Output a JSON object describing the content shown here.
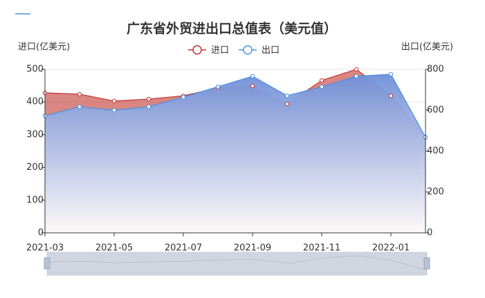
{
  "chart_data": {
    "type": "line",
    "title": "广东省外贸进出口总值表（美元值）",
    "y_label": "进口(亿美元)",
    "y2_label": "出口(亿美元)",
    "categories": [
      "2021-03",
      null,
      "2021-05",
      null,
      "2021-07",
      null,
      "2021-09",
      null,
      "2021-11",
      null,
      "2022-01",
      null
    ],
    "series": [
      {
        "name": "进口",
        "color": "#c23531",
        "values": [
          428,
          424,
          403,
          409,
          419,
          443,
          449,
          394,
          466,
          500,
          419,
          292
        ]
      },
      {
        "name": "出口",
        "color": "#4a90e2",
        "axis": "y2",
        "values": [
          573,
          617,
          600,
          617,
          664,
          715,
          766,
          671,
          715,
          766,
          776,
          468
        ]
      }
    ],
    "ylim": [
      0,
      500
    ],
    "yticks": [
      0,
      100,
      200,
      300,
      400,
      500
    ],
    "y2lim": [
      0,
      800
    ],
    "y2ticks": [
      0,
      200,
      400,
      600,
      800
    ],
    "grid": true
  }
}
